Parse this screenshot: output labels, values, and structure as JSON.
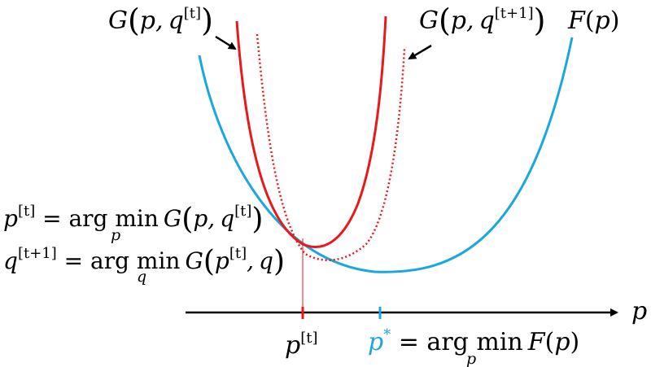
{
  "labels": {
    "g_t": {
      "G": "G",
      "open": "(",
      "p": "p",
      "comma": ",",
      "q": "q",
      "sup": "[t]",
      "close": ")"
    },
    "g_t1": {
      "G": "G",
      "open": "(",
      "p": "p",
      "comma": ",",
      "q": "q",
      "sup": "[t+1]",
      "close": ")"
    },
    "f": {
      "F": "F",
      "open": "(",
      "p": "p",
      "close": ")"
    },
    "axis_p": "p",
    "p_t": {
      "p": "p",
      "sup": "[t]"
    },
    "p_star": {
      "p": "p",
      "sup": "*",
      "eq": " = arg min",
      "sub": "p",
      "F": "F",
      "open": "(",
      "p2": "p",
      "close": ")"
    },
    "eq1": {
      "lhs": "p",
      "lhs_sup": "[t]",
      "eq": " = arg min",
      "sub": "p",
      "G": "G",
      "open": "(",
      "p": "p",
      "comma": ",",
      "q": "q",
      "sup": "[t]",
      "close": ")"
    },
    "eq2": {
      "lhs": "q",
      "lhs_sup": "[t+1]",
      "eq": " = arg min",
      "sub": "q",
      "G": "G",
      "open": "(",
      "p": "p",
      "p_sup": "[t]",
      "comma": ",",
      "q": "q",
      "close": ")"
    }
  },
  "colors": {
    "f_curve": "#1aa7e0",
    "g_curve": "#e8191c",
    "axis": "#000000",
    "text": "#000000",
    "p_star_text": "#1aa7e0"
  }
}
